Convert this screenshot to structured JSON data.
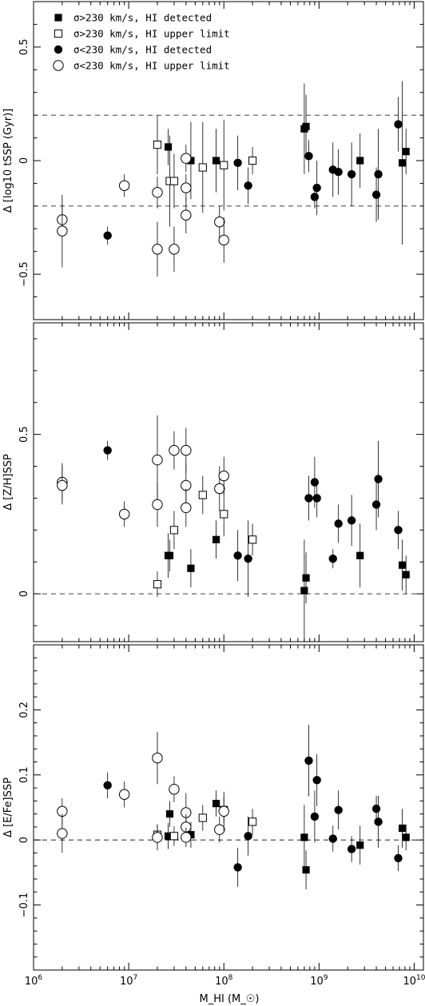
{
  "legend": [
    {
      "label": "σ>230 km/s, HI detected",
      "marker": "filled-square"
    },
    {
      "label": "σ>230 km/s, HI upper limit",
      "marker": "open-square"
    },
    {
      "label": "σ<230 km/s, HI detected",
      "marker": "filled-circle"
    },
    {
      "label": "σ<230 km/s, HI upper limit",
      "marker": "open-circle"
    }
  ],
  "x_axis": {
    "label": "M_HI (M_☉)",
    "scale": "log",
    "range": [
      1000000,
      12500000000
    ],
    "tick_labels": [
      "10^6",
      "10^7",
      "10^8",
      "10^9",
      "10^10"
    ]
  },
  "chart_data": [
    {
      "type": "scatter",
      "ylabel": "Δ [log10 tSSP (Gyr)]",
      "ylim": [
        -0.7,
        0.7
      ],
      "yticks": [
        "0.5",
        "0",
        "−0.5"
      ],
      "reference_lines": [
        0.2,
        -0.2
      ],
      "series": [
        {
          "name": "σ>230 km/s, HI detected",
          "marker": "filled-square",
          "points": [
            {
              "x": 26000000,
              "y": 0.06,
              "err": 0.08
            },
            {
              "x": 45000000,
              "y": 0.0,
              "err": 0.17
            },
            {
              "x": 83000000,
              "y": 0.0,
              "err": 0.14
            },
            {
              "x": 700000000,
              "y": 0.14,
              "err": 0.2
            },
            {
              "x": 730000000,
              "y": 0.15,
              "err": 0.14
            },
            {
              "x": 2700000000,
              "y": 0.0,
              "err": 0.12
            },
            {
              "x": 7500000000,
              "y": -0.01,
              "err": 0.36
            },
            {
              "x": 8200000000,
              "y": 0.04,
              "err": 0.1
            }
          ]
        },
        {
          "name": "σ>230 km/s, HI upper limit",
          "marker": "open-square",
          "points": [
            {
              "x": 20000000,
              "y": 0.07,
              "err": 0.13
            },
            {
              "x": 27000000,
              "y": -0.09,
              "err": 0.2
            },
            {
              "x": 30000000,
              "y": -0.09,
              "err": 0.12
            },
            {
              "x": 60000000,
              "y": -0.03,
              "err": 0.2
            },
            {
              "x": 100000000,
              "y": -0.02,
              "err": 0.2
            },
            {
              "x": 200000000,
              "y": 0.0,
              "err": 0.06
            }
          ]
        },
        {
          "name": "σ<230 km/s, HI detected",
          "marker": "filled-circle",
          "points": [
            {
              "x": 6000000,
              "y": -0.33,
              "err": 0.04
            },
            {
              "x": 140000000,
              "y": -0.01,
              "err": 0.12
            },
            {
              "x": 180000000,
              "y": -0.11,
              "err": 0.08
            },
            {
              "x": 780000000,
              "y": 0.02,
              "err": 0.07
            },
            {
              "x": 900000000,
              "y": -0.16,
              "err": 0.05
            },
            {
              "x": 950000000,
              "y": -0.12,
              "err": 0.12
            },
            {
              "x": 1400000000,
              "y": -0.04,
              "err": 0.12
            },
            {
              "x": 1600000000,
              "y": -0.05,
              "err": 0.1
            },
            {
              "x": 2200000000,
              "y": -0.06,
              "err": 0.14
            },
            {
              "x": 4000000000,
              "y": -0.15,
              "err": 0.12
            },
            {
              "x": 4200000000,
              "y": -0.06,
              "err": 0.2
            },
            {
              "x": 6800000000,
              "y": 0.16,
              "err": 0.12
            }
          ]
        },
        {
          "name": "σ<230 km/s, HI upper limit",
          "marker": "open-circle",
          "points": [
            {
              "x": 2000000,
              "y": -0.26,
              "err": 0.07
            },
            {
              "x": 2000000,
              "y": -0.31,
              "err": 0.16
            },
            {
              "x": 9000000,
              "y": -0.11,
              "err": 0.05
            },
            {
              "x": 20000000,
              "y": -0.14,
              "err": 0.07
            },
            {
              "x": 20000000,
              "y": -0.39,
              "err": 0.12
            },
            {
              "x": 30000000,
              "y": -0.39,
              "err": 0.1
            },
            {
              "x": 40000000,
              "y": 0.01,
              "err": 0.06
            },
            {
              "x": 40000000,
              "y": -0.12,
              "err": 0.06
            },
            {
              "x": 40000000,
              "y": -0.24,
              "err": 0.08
            },
            {
              "x": 90000000,
              "y": -0.27,
              "err": 0.07
            },
            {
              "x": 100000000,
              "y": -0.35,
              "err": 0.1
            }
          ]
        }
      ]
    },
    {
      "type": "scatter",
      "ylabel": "Δ [Z/H]SSP",
      "ylim": [
        -0.15,
        0.85
      ],
      "yticks": [
        "0.5",
        "0"
      ],
      "reference_lines": [
        0
      ],
      "series": [
        {
          "name": "σ>230 km/s, HI detected",
          "marker": "filled-square",
          "points": [
            {
              "x": 26000000,
              "y": 0.12,
              "err": 0.07
            },
            {
              "x": 27000000,
              "y": 0.12,
              "err": 0.05
            },
            {
              "x": 45000000,
              "y": 0.08,
              "err": 0.06
            },
            {
              "x": 83000000,
              "y": 0.17,
              "err": 0.06
            },
            {
              "x": 700000000,
              "y": 0.01,
              "err": 0.16
            },
            {
              "x": 730000000,
              "y": 0.05,
              "err": 0.08
            },
            {
              "x": 2700000000,
              "y": 0.12,
              "err": 0.1
            },
            {
              "x": 7500000000,
              "y": 0.09,
              "err": 0.08
            },
            {
              "x": 8200000000,
              "y": 0.06,
              "err": 0.06
            }
          ]
        },
        {
          "name": "σ>230 km/s, HI upper limit",
          "marker": "open-square",
          "points": [
            {
              "x": 20000000,
              "y": 0.03,
              "err": 0.04
            },
            {
              "x": 30000000,
              "y": 0.2,
              "err": 0.06
            },
            {
              "x": 60000000,
              "y": 0.31,
              "err": 0.06
            },
            {
              "x": 100000000,
              "y": 0.25,
              "err": 0.07
            },
            {
              "x": 200000000,
              "y": 0.17,
              "err": 0.05
            }
          ]
        },
        {
          "name": "σ<230 km/s, HI detected",
          "marker": "filled-circle",
          "points": [
            {
              "x": 6000000,
              "y": 0.45,
              "err": 0.03
            },
            {
              "x": 140000000,
              "y": 0.12,
              "err": 0.08
            },
            {
              "x": 180000000,
              "y": 0.11,
              "err": 0.12
            },
            {
              "x": 780000000,
              "y": 0.3,
              "err": 0.07
            },
            {
              "x": 900000000,
              "y": 0.35,
              "err": 0.08
            },
            {
              "x": 950000000,
              "y": 0.3,
              "err": 0.06
            },
            {
              "x": 1400000000,
              "y": 0.11,
              "err": 0.03
            },
            {
              "x": 1600000000,
              "y": 0.22,
              "err": 0.06
            },
            {
              "x": 2200000000,
              "y": 0.23,
              "err": 0.08
            },
            {
              "x": 4000000000,
              "y": 0.28,
              "err": 0.08
            },
            {
              "x": 4200000000,
              "y": 0.36,
              "err": 0.12
            },
            {
              "x": 6800000000,
              "y": 0.2,
              "err": 0.06
            }
          ]
        },
        {
          "name": "σ<230 km/s, HI upper limit",
          "marker": "open-circle",
          "points": [
            {
              "x": 2000000,
              "y": 0.35,
              "err": 0.06
            },
            {
              "x": 2000000,
              "y": 0.34,
              "err": 0.06
            },
            {
              "x": 9000000,
              "y": 0.25,
              "err": 0.04
            },
            {
              "x": 20000000,
              "y": 0.42,
              "err": 0.14
            },
            {
              "x": 20000000,
              "y": 0.28,
              "err": 0.07
            },
            {
              "x": 30000000,
              "y": 0.45,
              "err": 0.06
            },
            {
              "x": 40000000,
              "y": 0.45,
              "err": 0.07
            },
            {
              "x": 40000000,
              "y": 0.34,
              "err": 0.07
            },
            {
              "x": 40000000,
              "y": 0.27,
              "err": 0.06
            },
            {
              "x": 90000000,
              "y": 0.33,
              "err": 0.07
            },
            {
              "x": 100000000,
              "y": 0.37,
              "err": 0.06
            }
          ]
        }
      ]
    },
    {
      "type": "scatter",
      "ylabel": "Δ [E/Fe]SSP",
      "ylim": [
        -0.2,
        0.3
      ],
      "yticks": [
        "0.2",
        "0.1",
        "0",
        "−0.1"
      ],
      "reference_lines": [
        0
      ],
      "series": [
        {
          "name": "σ>230 km/s, HI detected",
          "marker": "filled-square",
          "points": [
            {
              "x": 26000000,
              "y": 0.006,
              "err": 0.02
            },
            {
              "x": 27000000,
              "y": 0.04,
              "err": 0.02
            },
            {
              "x": 45000000,
              "y": 0.008,
              "err": 0.02
            },
            {
              "x": 83000000,
              "y": 0.056,
              "err": 0.02
            },
            {
              "x": 700000000,
              "y": 0.004,
              "err": 0.05
            },
            {
              "x": 730000000,
              "y": -0.046,
              "err": 0.03
            },
            {
              "x": 2700000000,
              "y": -0.008,
              "err": 0.03
            },
            {
              "x": 7500000000,
              "y": 0.018,
              "err": 0.03
            },
            {
              "x": 8200000000,
              "y": 0.004,
              "err": 0.02
            }
          ]
        },
        {
          "name": "σ>230 km/s, HI upper limit",
          "marker": "open-square",
          "points": [
            {
              "x": 20000000,
              "y": 0.008,
              "err": 0.015
            },
            {
              "x": 30000000,
              "y": 0.006,
              "err": 0.015
            },
            {
              "x": 60000000,
              "y": 0.034,
              "err": 0.02
            },
            {
              "x": 100000000,
              "y": 0.046,
              "err": 0.02
            },
            {
              "x": 200000000,
              "y": 0.028,
              "err": 0.02
            }
          ]
        },
        {
          "name": "σ<230 km/s, HI detected",
          "marker": "filled-circle",
          "points": [
            {
              "x": 6000000,
              "y": 0.084,
              "err": 0.02
            },
            {
              "x": 140000000,
              "y": -0.042,
              "err": 0.03
            },
            {
              "x": 180000000,
              "y": 0.006,
              "err": 0.03
            },
            {
              "x": 780000000,
              "y": 0.122,
              "err": 0.055
            },
            {
              "x": 900000000,
              "y": 0.036,
              "err": 0.04
            },
            {
              "x": 950000000,
              "y": 0.092,
              "err": 0.04
            },
            {
              "x": 1400000000,
              "y": 0.002,
              "err": 0.02
            },
            {
              "x": 1600000000,
              "y": 0.046,
              "err": 0.03
            },
            {
              "x": 2200000000,
              "y": -0.014,
              "err": 0.02
            },
            {
              "x": 4000000000,
              "y": 0.048,
              "err": 0.02
            },
            {
              "x": 4200000000,
              "y": 0.028,
              "err": 0.04
            },
            {
              "x": 6800000000,
              "y": -0.028,
              "err": 0.02
            }
          ]
        },
        {
          "name": "σ<230 km/s, HI upper limit",
          "marker": "open-circle",
          "points": [
            {
              "x": 2000000,
              "y": 0.044,
              "err": 0.02
            },
            {
              "x": 2000000,
              "y": 0.01,
              "err": 0.03
            },
            {
              "x": 9000000,
              "y": 0.07,
              "err": 0.02
            },
            {
              "x": 20000000,
              "y": 0.126,
              "err": 0.04
            },
            {
              "x": 20000000,
              "y": 0.004,
              "err": 0.02
            },
            {
              "x": 30000000,
              "y": 0.078,
              "err": 0.02
            },
            {
              "x": 40000000,
              "y": 0.042,
              "err": 0.03
            },
            {
              "x": 40000000,
              "y": 0.02,
              "err": 0.02
            },
            {
              "x": 40000000,
              "y": 0.004,
              "err": 0.015
            },
            {
              "x": 90000000,
              "y": 0.016,
              "err": 0.02
            },
            {
              "x": 100000000,
              "y": 0.044,
              "err": 0.03
            }
          ]
        }
      ]
    }
  ]
}
